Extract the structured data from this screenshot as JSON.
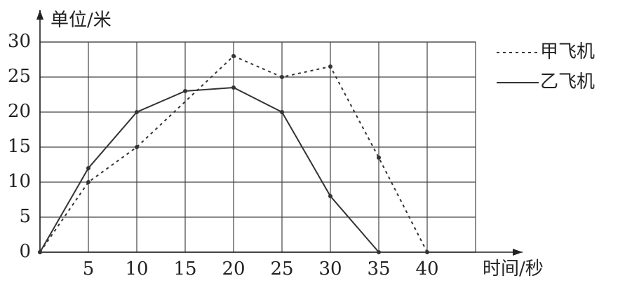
{
  "chart_data": {
    "type": "line",
    "y_label": "单位/米",
    "x_label": "时间/秒",
    "xlim": [
      0,
      45
    ],
    "xticks": [
      5,
      10,
      15,
      20,
      25,
      30,
      35,
      40
    ],
    "ylim": [
      0,
      30
    ],
    "yticks": [
      0,
      5,
      10,
      15,
      20,
      25,
      30
    ],
    "grid": true,
    "legend": "right",
    "series": [
      {
        "name": "甲飞机",
        "color": "#333333",
        "style": "dashed",
        "x": [
          0,
          5,
          10,
          20,
          25,
          30,
          35,
          40
        ],
        "values": [
          0,
          10,
          15,
          28,
          25,
          26.5,
          13.5,
          0
        ]
      },
      {
        "name": "乙飞机",
        "color": "#333333",
        "style": "solid",
        "x": [
          0,
          5,
          10,
          15,
          20,
          25,
          30,
          35
        ],
        "values": [
          0,
          12,
          20,
          23,
          23.5,
          20,
          8,
          0
        ]
      }
    ]
  }
}
